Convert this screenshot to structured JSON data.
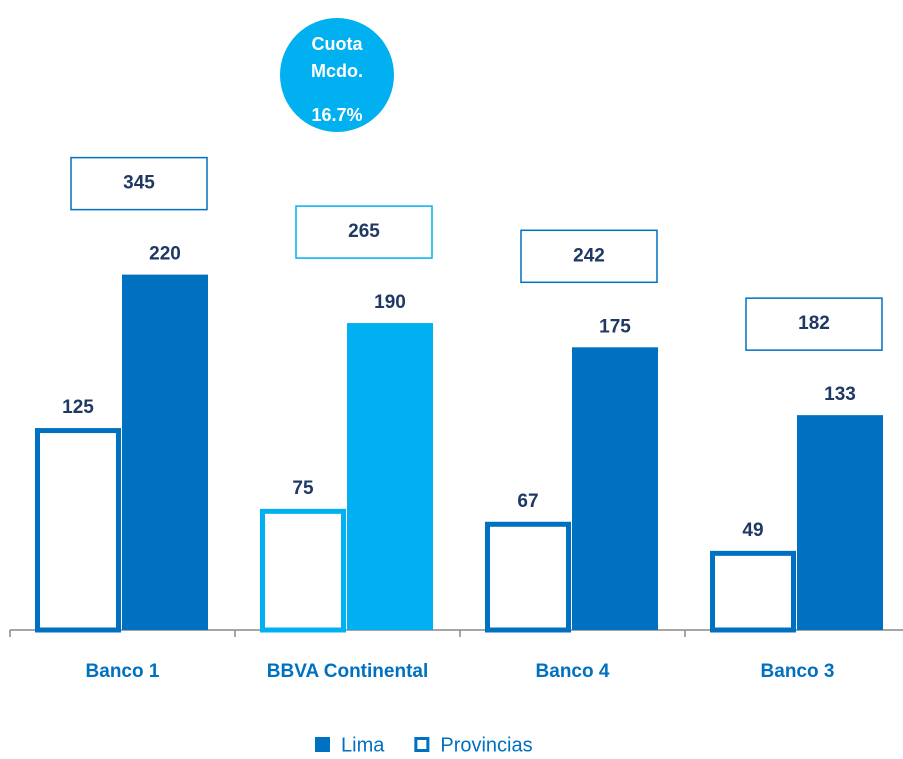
{
  "chart_data": {
    "type": "bar",
    "categories": [
      "Banco 1",
      "BBVA Continental",
      "Banco 4",
      "Banco 3"
    ],
    "series": [
      {
        "name": "Lima",
        "style": "solid",
        "color": "#0070c0",
        "colors": [
          "#0070c0",
          "#00b0f0",
          "#0070c0",
          "#0070c0"
        ],
        "values": [
          220,
          190,
          175,
          133
        ]
      },
      {
        "name": "Provincias",
        "style": "outline",
        "color": "#0070c0",
        "colors": [
          "#0070c0",
          "#00b0f0",
          "#0070c0",
          "#0070c0"
        ],
        "values": [
          125,
          75,
          67,
          49
        ]
      }
    ],
    "totals": [
      345,
      265,
      242,
      182
    ],
    "annotation": {
      "lines": [
        "Cuota",
        "Mcdo."
      ],
      "value": {
        "value": 16.7,
        "label": "16.7%"
      },
      "color": "#00b0f0"
    },
    "ylim": [
      0,
      390
    ],
    "legend": "bottom"
  }
}
